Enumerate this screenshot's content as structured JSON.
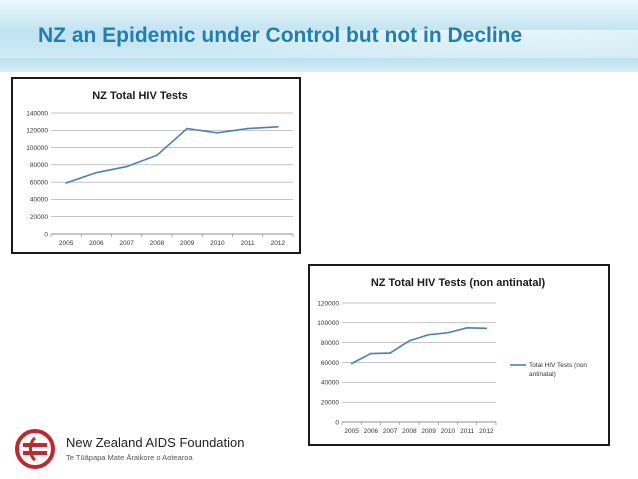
{
  "slide": {
    "title": "NZ an Epidemic under Control but not in Decline"
  },
  "logo": {
    "org_name": "New Zealand AIDS Foundation",
    "subtitle": "Te Tūāpapa Mate Āraikore o Aotearoa",
    "icon": "naf-circle-logo-icon",
    "color": "#c0282d"
  },
  "chart_data": [
    {
      "type": "line",
      "title": "NZ Total HIV Tests",
      "categories": [
        "2005",
        "2006",
        "2007",
        "2008",
        "2009",
        "2010",
        "2011",
        "2012"
      ],
      "series": [
        {
          "values": [
            59000,
            71000,
            78000,
            91000,
            122000,
            117000,
            122000,
            124000
          ]
        }
      ],
      "yticks": [
        "0",
        "20000",
        "40000",
        "60000",
        "80000",
        "100000",
        "120000",
        "140000"
      ],
      "ylim": [
        0,
        140000
      ],
      "grid": true,
      "legend": "none",
      "line_color": "#4a7ebb"
    },
    {
      "type": "line",
      "title": "NZ Total HIV Tests (non antinatal)",
      "categories": [
        "2005",
        "2006",
        "2007",
        "2008",
        "2009",
        "2010",
        "2011",
        "2012"
      ],
      "series": [
        {
          "name": "Total HIV Tests (non antinatal)",
          "values": [
            59000,
            69000,
            69500,
            82000,
            88000,
            90000,
            95000,
            94500
          ]
        }
      ],
      "yticks": [
        "0",
        "20000",
        "40000",
        "60000",
        "80000",
        "100000",
        "120000"
      ],
      "ylim": [
        0,
        120000
      ],
      "grid": true,
      "legend": "right",
      "line_color": "#4a7ebb"
    }
  ]
}
